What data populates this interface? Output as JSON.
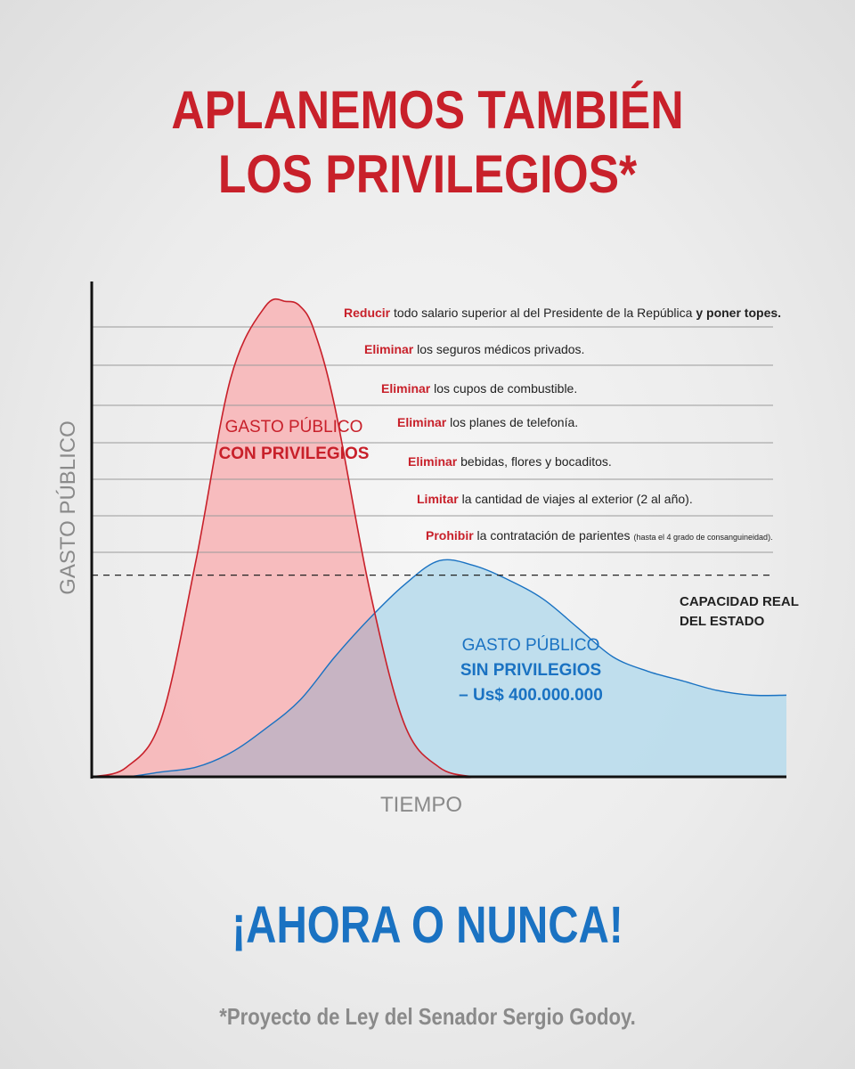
{
  "title_lines": [
    "APLANEMOS TAMBIÉN",
    "LOS PRIVILEGIOS*"
  ],
  "cta": "¡AHORA O NUNCA!",
  "footnote": "*Proyecto de Ley del Senador Sergio Godoy.",
  "colors": {
    "red": "#c8202a",
    "red_fill": "#f7b8bb",
    "blue": "#1a72c2",
    "blue_fill": "#bcdcec",
    "overlap_fill": "#c7b4c3",
    "axis": "#111111",
    "gray_text": "#8a8a8a"
  },
  "chart_data": {
    "type": "area",
    "xlabel": "TIEMPO",
    "ylabel": "GASTO PÚBLICO",
    "xlim": [
      0,
      100
    ],
    "ylim": [
      0,
      100
    ],
    "grid": true,
    "series": [
      {
        "name": "GASTO PÚBLICO CON PRIVILEGIOS",
        "label_lines": [
          "GASTO PÚBLICO",
          "CON PRIVILEGIOS"
        ],
        "x": [
          0,
          5,
          10,
          15,
          20,
          25,
          28,
          30,
          32,
          35,
          40,
          45,
          50,
          55,
          57,
          100
        ],
        "y": [
          0,
          2,
          12,
          45,
          83,
          98,
          99,
          98,
          93,
          77,
          39,
          11,
          2,
          0,
          0,
          0
        ]
      },
      {
        "name": "GASTO PÚBLICO SIN PRIVILEGIOS",
        "label_lines": [
          "GASTO PÚBLICO",
          "SIN PRIVILEGIOS",
          "– Us$ 400.000.000"
        ],
        "x": [
          0,
          5,
          10,
          15,
          20,
          25,
          30,
          35,
          40,
          45,
          50,
          55,
          60,
          65,
          70,
          75,
          80,
          85,
          90,
          95,
          100
        ],
        "y": [
          0,
          0,
          1,
          2,
          5,
          10,
          16,
          25,
          33,
          40,
          45,
          44,
          41,
          37,
          31,
          25,
          22,
          20,
          18,
          17,
          17
        ]
      }
    ],
    "threshold": {
      "y": 42,
      "label_lines": [
        "CAPACIDAD REAL",
        "DEL ESTADO"
      ]
    },
    "annotations": [
      {
        "key": "Reducir",
        "text": " todo salario superior al del Presidente de la República ",
        "bold": "y poner topes."
      },
      {
        "key": "Eliminar",
        "text": " los seguros médicos privados.",
        "bold": ""
      },
      {
        "key": "Eliminar",
        "text": " los cupos de combustible.",
        "bold": ""
      },
      {
        "key": "Eliminar",
        "text": " los planes de telefonía.",
        "bold": ""
      },
      {
        "key": "Eliminar",
        "text": " bebidas, flores y bocaditos.",
        "bold": ""
      },
      {
        "key": "Limitar",
        "text": " la cantidad de viajes al exterior (2 al año).",
        "bold": ""
      },
      {
        "key": "Prohibir",
        "text": " la contratación de parientes ",
        "bold": "",
        "small": "(hasta el 4 grado de consanguineidad)."
      }
    ]
  }
}
